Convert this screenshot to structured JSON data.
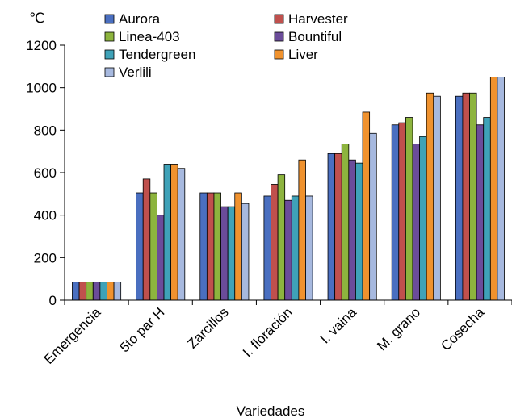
{
  "chart_data": {
    "type": "bar",
    "title": "",
    "unit_label": "℃",
    "xlabel": "Variedades",
    "ylabel": "",
    "ylim": [
      0,
      1200
    ],
    "yticks": [
      0,
      200,
      400,
      600,
      800,
      1000,
      1200
    ],
    "grid": false,
    "legend_position": "top",
    "categories": [
      "Emergencia",
      "5to par  H",
      "Zarcillos",
      "I. floración",
      "I. vaina",
      "M. grano",
      "Cosecha"
    ],
    "series": [
      {
        "name": "Aurora",
        "color": "#4a6fc0",
        "values": [
          85,
          505,
          505,
          490,
          690,
          825,
          960
        ]
      },
      {
        "name": "Harvester",
        "color": "#c0504d",
        "values": [
          85,
          570,
          505,
          545,
          690,
          835,
          975
        ]
      },
      {
        "name": "Linea-403",
        "color": "#8db43e",
        "values": [
          85,
          505,
          505,
          590,
          735,
          860,
          975
        ]
      },
      {
        "name": "Bountiful",
        "color": "#6b4c9a",
        "values": [
          85,
          400,
          440,
          470,
          660,
          735,
          825
        ]
      },
      {
        "name": "Tendergreen",
        "color": "#3fa2b8",
        "values": [
          85,
          640,
          440,
          490,
          645,
          770,
          860
        ]
      },
      {
        "name": "Liver",
        "color": "#f0922e",
        "values": [
          85,
          640,
          505,
          660,
          885,
          975,
          1050
        ]
      },
      {
        "name": "Verlili",
        "color": "#a7b9df",
        "values": [
          85,
          620,
          455,
          490,
          785,
          960,
          1050
        ]
      }
    ]
  }
}
